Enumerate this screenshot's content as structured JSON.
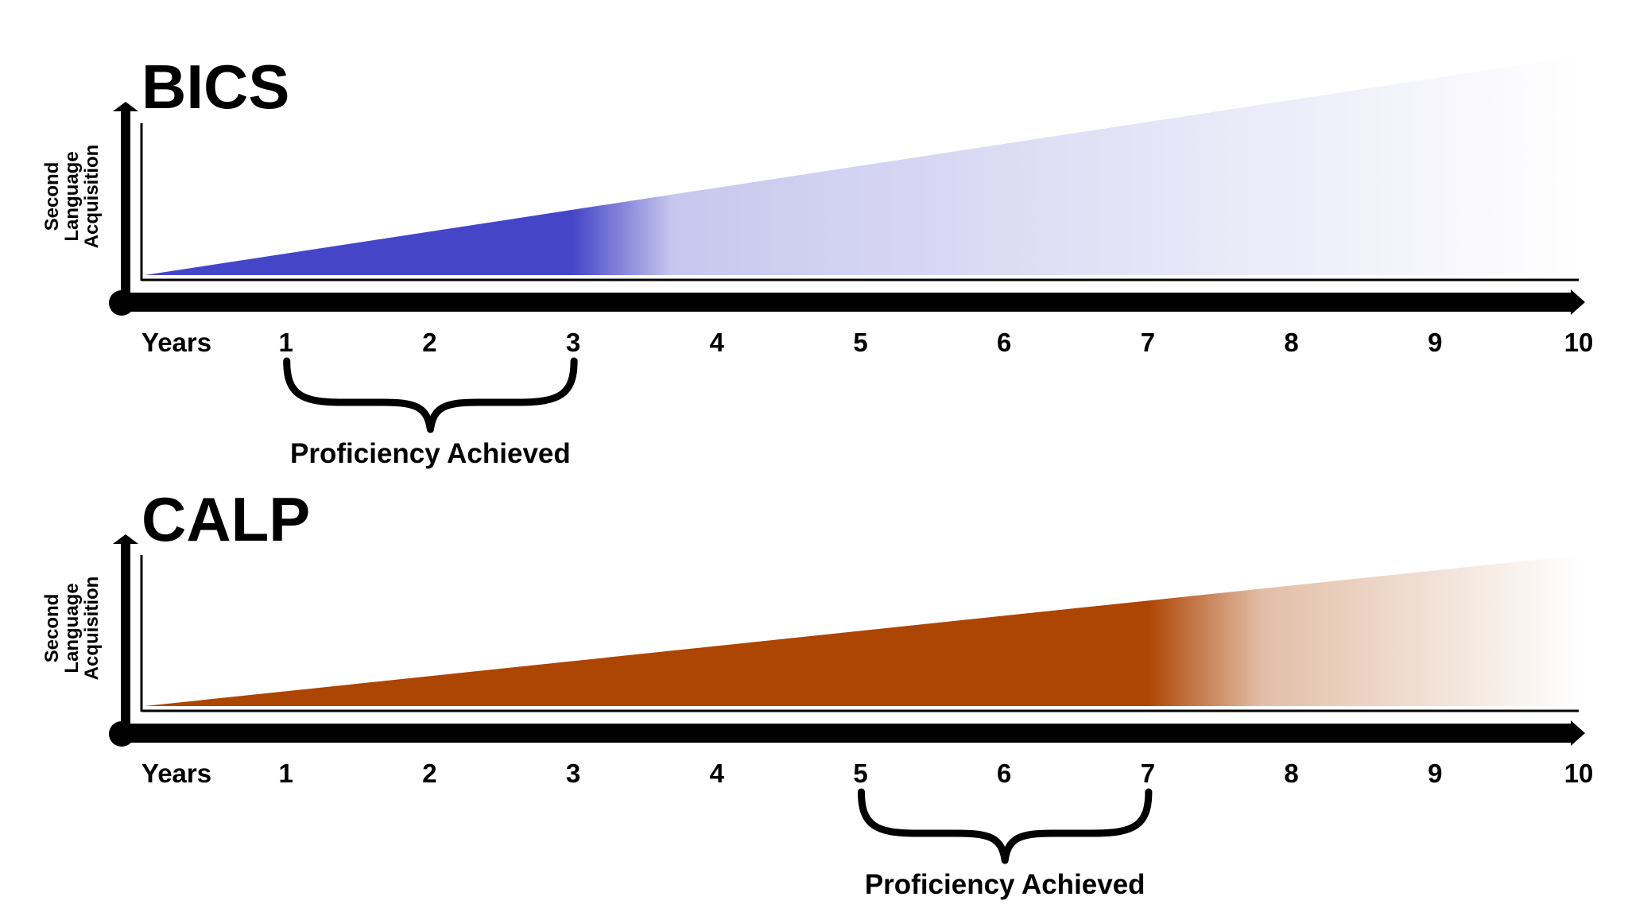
{
  "colors": {
    "bics": "#4545c8",
    "calp": "#ad4503",
    "axis": "#000000"
  },
  "x_axis": {
    "label": "Years",
    "ticks": [
      "1",
      "2",
      "3",
      "4",
      "5",
      "6",
      "7",
      "8",
      "9",
      "10"
    ]
  },
  "y_axis_label": {
    "line1": "Second",
    "line2": "Language",
    "line3": "Acquisition"
  },
  "panels": [
    {
      "id": "bics",
      "title": "BICS",
      "proficiency_label": "Proficiency Achieved",
      "proficiency_years": [
        1,
        3
      ],
      "solid_until_year": 3,
      "fade_until_year": 3.7,
      "acquisition_end_level": 0.95
    },
    {
      "id": "calp",
      "title": "CALP",
      "proficiency_label": "Proficiency Achieved",
      "proficiency_years": [
        5,
        7
      ],
      "solid_until_year": 7,
      "fade_until_year": 7.8,
      "acquisition_end_level": 0.65
    }
  ]
}
